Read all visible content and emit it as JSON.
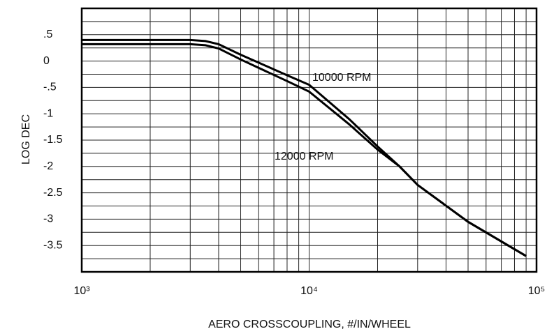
{
  "chart_data": {
    "type": "line",
    "xlabel": "AERO CROSSCOUPLING, #/IN/WHEEL",
    "ylabel": "LOG DEC",
    "xscale": "log",
    "x": [
      1000,
      2000,
      3000,
      3500,
      4000,
      5000,
      6000,
      8000,
      10000,
      15000,
      20000,
      25000,
      30000,
      50000,
      90000
    ],
    "series": [
      {
        "name": "10000 RPM",
        "color": "#000000",
        "values": [
          0.4,
          0.4,
          0.4,
          0.38,
          0.32,
          0.12,
          -0.03,
          -0.27,
          -0.45,
          -1.1,
          -1.62,
          -2.0,
          -2.35,
          -3.05,
          -3.7
        ]
      },
      {
        "name": "12000  RPM",
        "color": "#000000",
        "values": [
          0.32,
          0.32,
          0.32,
          0.3,
          0.24,
          0.03,
          -0.13,
          -0.38,
          -0.58,
          -1.2,
          -1.68,
          -2.0,
          -2.35,
          -3.05,
          -3.7
        ]
      }
    ],
    "xlim": [
      1000,
      100000
    ],
    "xticks": [
      {
        "value": 1000,
        "label": "10³"
      },
      {
        "value": 10000,
        "label": "10⁴"
      },
      {
        "value": 100000,
        "label": "10⁵"
      }
    ],
    "xminorticks": [
      2000,
      3000,
      4000,
      5000,
      6000,
      7000,
      8000,
      9000,
      20000,
      30000,
      40000,
      50000,
      60000,
      70000,
      80000,
      90000
    ],
    "ylim": [
      -4,
      1
    ],
    "yticks": [
      {
        "value": 0.5,
        "label": ".5"
      },
      0,
      {
        "value": -0.5,
        "label": "-.5"
      },
      -1,
      -1.5,
      -2,
      -2.5,
      -3,
      -3.5
    ],
    "yminorticks": [
      0.75,
      0.25,
      -0.25,
      -0.75,
      -1.25,
      -1.75,
      -2.25,
      -2.75,
      -3.25,
      -3.75
    ],
    "grid": true
  }
}
